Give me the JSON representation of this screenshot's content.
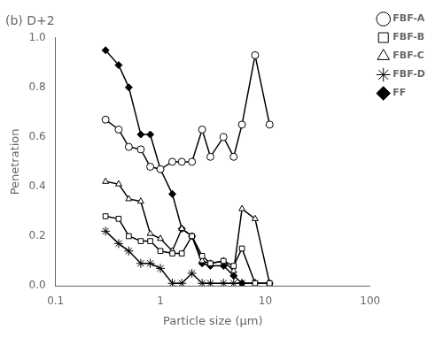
{
  "chart_data": {
    "type": "line",
    "title": "(b) D+2",
    "x_label": "Particle size (μm)",
    "y_label": "Penetration",
    "log": "x",
    "xlim": [
      0.1,
      100
    ],
    "xticks": [
      0.1,
      1,
      10,
      100
    ],
    "ylim": [
      0.0,
      1.0
    ],
    "yticks": [
      {
        "value": 0.0,
        "label": "0.0"
      },
      0.2,
      0.4,
      0.6,
      0.8,
      {
        "value": 1.0,
        "label": "1.0"
      }
    ],
    "grid": false,
    "legend": "upper right",
    "series": [
      {
        "name": "FBF-A",
        "color": "#000000",
        "marker": "circle-open",
        "x": [
          0.3,
          0.4,
          0.5,
          0.65,
          0.8,
          1.0,
          1.3,
          1.6,
          2.0,
          2.5,
          3.0,
          4.0,
          5.0,
          6.0,
          8.0,
          11.0
        ],
        "values": [
          0.67,
          0.63,
          0.56,
          0.55,
          0.48,
          0.47,
          0.5,
          0.5,
          0.5,
          0.63,
          0.52,
          0.6,
          0.52,
          0.65,
          0.93,
          0.65
        ]
      },
      {
        "name": "FBF-B",
        "color": "#000000",
        "marker": "square-open",
        "x": [
          0.3,
          0.4,
          0.5,
          0.65,
          0.8,
          1.0,
          1.3,
          1.6,
          2.0,
          2.5,
          3.0,
          4.0,
          5.0,
          6.0,
          8.0,
          11.0
        ],
        "values": [
          0.28,
          0.27,
          0.2,
          0.18,
          0.18,
          0.14,
          0.13,
          0.13,
          0.2,
          0.12,
          0.09,
          0.1,
          0.08,
          0.15,
          0.01,
          0.01
        ]
      },
      {
        "name": "FBF-C",
        "color": "#000000",
        "marker": "triangle-open",
        "x": [
          0.3,
          0.4,
          0.5,
          0.65,
          0.8,
          1.0,
          1.3,
          1.6,
          2.0,
          2.5,
          3.0,
          4.0,
          5.0,
          6.0,
          8.0,
          11.0
        ],
        "values": [
          0.42,
          0.41,
          0.35,
          0.34,
          0.21,
          0.19,
          0.14,
          0.23,
          0.2,
          0.1,
          0.09,
          0.1,
          0.06,
          0.31,
          0.27,
          0.01
        ]
      },
      {
        "name": "FBF-D",
        "color": "#000000",
        "marker": "star",
        "x": [
          0.3,
          0.4,
          0.5,
          0.65,
          0.8,
          1.0,
          1.3,
          1.6,
          2.0,
          2.5,
          3.0,
          4.0,
          5.0,
          6.0,
          8.0
        ],
        "values": [
          0.22,
          0.17,
          0.14,
          0.09,
          0.09,
          0.07,
          0.01,
          0.01,
          0.05,
          0.01,
          0.01,
          0.01,
          0.01,
          0.01,
          0.01
        ]
      },
      {
        "name": "FF",
        "color": "#000000",
        "marker": "diamond",
        "x": [
          0.3,
          0.4,
          0.5,
          0.65,
          0.8,
          1.0,
          1.3,
          1.6,
          2.0,
          2.5,
          3.0,
          4.0,
          5.0,
          6.0,
          8.0,
          11.0
        ],
        "values": [
          0.95,
          0.89,
          0.8,
          0.61,
          0.61,
          0.47,
          0.37,
          0.23,
          0.2,
          0.09,
          0.08,
          0.08,
          0.04,
          0.01,
          0.01,
          0.01
        ]
      }
    ]
  }
}
